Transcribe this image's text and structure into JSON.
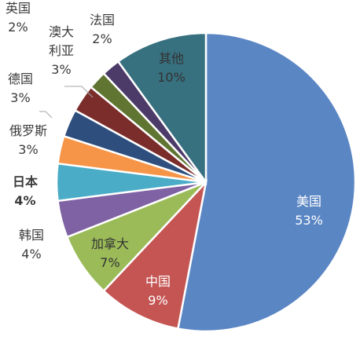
{
  "chart_data": {
    "type": "pie",
    "title": "",
    "slices": [
      {
        "label": "美国",
        "value": 53,
        "value_label": "53%",
        "color": "#5b86c4"
      },
      {
        "label": "中国",
        "value": 9,
        "value_label": "9%",
        "color": "#c45553"
      },
      {
        "label": "加拿大",
        "value": 7,
        "value_label": "7%",
        "color": "#9bbb59"
      },
      {
        "label": "韩国",
        "value": 4,
        "value_label": "4%",
        "color": "#7e62a3"
      },
      {
        "label": "日本",
        "value": 4,
        "value_label": "4%",
        "color": "#4aacc6"
      },
      {
        "label": "俄罗斯",
        "value": 3,
        "value_label": "3%",
        "color": "#f69548"
      },
      {
        "label": "德国",
        "value": 3,
        "value_label": "3%",
        "color": "#2e4e7e"
      },
      {
        "label": "澳大利亚",
        "label_lines": [
          "澳大",
          "利亚"
        ],
        "value": 3,
        "value_label": "3%",
        "color": "#7a2d2b"
      },
      {
        "label": "英国",
        "value": 2,
        "value_label": "2%",
        "color": "#5f7531"
      },
      {
        "label": "法国",
        "value": 2,
        "value_label": "2%",
        "color": "#4c3a68"
      },
      {
        "label": "其他",
        "value": 10,
        "value_label": "10%",
        "color": "#37707f"
      }
    ],
    "legend": "none",
    "slice_border_color": "#ffffff"
  }
}
